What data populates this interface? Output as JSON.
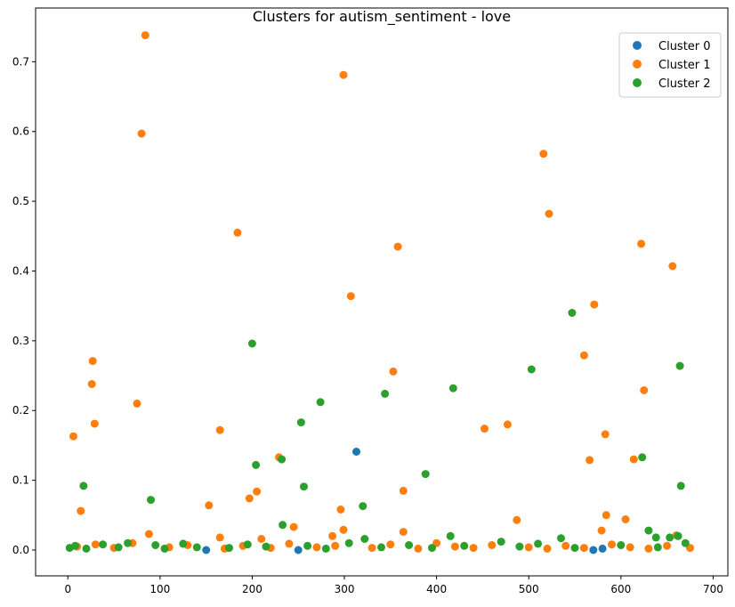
{
  "chart_data": {
    "type": "scatter",
    "title": "Clusters for autism_sentiment - love",
    "xlabel": "",
    "ylabel": "",
    "xlim": [
      -35,
      716
    ],
    "ylim": [
      -0.037,
      0.777
    ],
    "x_ticks": [
      0,
      100,
      200,
      300,
      400,
      500,
      600,
      700
    ],
    "y_ticks": [
      0.0,
      0.1,
      0.2,
      0.3,
      0.4,
      0.5,
      0.6,
      0.7
    ],
    "x_tick_labels": [
      "0",
      "100",
      "200",
      "300",
      "400",
      "500",
      "600",
      "700"
    ],
    "y_tick_labels": [
      "0.0",
      "0.1",
      "0.2",
      "0.3",
      "0.4",
      "0.5",
      "0.6",
      "0.7"
    ],
    "legend_position": "upper-right",
    "grid": false,
    "series": [
      {
        "name": "Cluster 0",
        "color": "#1f77b4",
        "points": [
          [
            313,
            0.141
          ],
          [
            150,
            0.0
          ],
          [
            250,
            0.0
          ],
          [
            570,
            0.0
          ],
          [
            580,
            0.002
          ]
        ]
      },
      {
        "name": "Cluster 1",
        "color": "#ff7f0e",
        "points": [
          [
            84,
            0.738
          ],
          [
            299,
            0.681
          ],
          [
            80,
            0.597
          ],
          [
            516,
            0.568
          ],
          [
            522,
            0.482
          ],
          [
            184,
            0.455
          ],
          [
            358,
            0.435
          ],
          [
            622,
            0.439
          ],
          [
            656,
            0.407
          ],
          [
            307,
            0.364
          ],
          [
            571,
            0.352
          ],
          [
            27,
            0.271
          ],
          [
            560,
            0.279
          ],
          [
            353,
            0.256
          ],
          [
            26,
            0.238
          ],
          [
            625,
            0.229
          ],
          [
            75,
            0.21
          ],
          [
            29,
            0.181
          ],
          [
            477,
            0.18
          ],
          [
            452,
            0.174
          ],
          [
            165,
            0.172
          ],
          [
            6,
            0.163
          ],
          [
            583,
            0.166
          ],
          [
            566,
            0.129
          ],
          [
            614,
            0.13
          ],
          [
            229,
            0.133
          ],
          [
            364,
            0.085
          ],
          [
            205,
            0.084
          ],
          [
            197,
            0.074
          ],
          [
            153,
            0.064
          ],
          [
            14,
            0.056
          ],
          [
            296,
            0.058
          ],
          [
            584,
            0.05
          ],
          [
            605,
            0.044
          ],
          [
            487,
            0.043
          ],
          [
            245,
            0.033
          ],
          [
            299,
            0.029
          ],
          [
            579,
            0.028
          ],
          [
            364,
            0.026
          ],
          [
            88,
            0.023
          ],
          [
            287,
            0.02
          ],
          [
            165,
            0.018
          ],
          [
            210,
            0.016
          ],
          [
            660,
            0.021
          ],
          [
            10,
            0.005
          ],
          [
            30,
            0.008
          ],
          [
            50,
            0.003
          ],
          [
            70,
            0.01
          ],
          [
            110,
            0.004
          ],
          [
            130,
            0.007
          ],
          [
            170,
            0.002
          ],
          [
            190,
            0.006
          ],
          [
            220,
            0.003
          ],
          [
            240,
            0.009
          ],
          [
            270,
            0.004
          ],
          [
            290,
            0.006
          ],
          [
            330,
            0.003
          ],
          [
            350,
            0.008
          ],
          [
            380,
            0.002
          ],
          [
            400,
            0.01
          ],
          [
            420,
            0.005
          ],
          [
            440,
            0.003
          ],
          [
            460,
            0.007
          ],
          [
            500,
            0.004
          ],
          [
            520,
            0.002
          ],
          [
            540,
            0.006
          ],
          [
            560,
            0.003
          ],
          [
            590,
            0.008
          ],
          [
            610,
            0.004
          ],
          [
            630,
            0.002
          ],
          [
            650,
            0.006
          ],
          [
            675,
            0.003
          ]
        ]
      },
      {
        "name": "Cluster 2",
        "color": "#2ca02c",
        "points": [
          [
            547,
            0.34
          ],
          [
            200,
            0.296
          ],
          [
            664,
            0.264
          ],
          [
            503,
            0.259
          ],
          [
            418,
            0.232
          ],
          [
            344,
            0.224
          ],
          [
            274,
            0.212
          ],
          [
            253,
            0.183
          ],
          [
            623,
            0.133
          ],
          [
            232,
            0.13
          ],
          [
            204,
            0.122
          ],
          [
            388,
            0.109
          ],
          [
            17,
            0.092
          ],
          [
            256,
            0.091
          ],
          [
            665,
            0.092
          ],
          [
            90,
            0.072
          ],
          [
            320,
            0.063
          ],
          [
            233,
            0.036
          ],
          [
            630,
            0.028
          ],
          [
            415,
            0.02
          ],
          [
            535,
            0.017
          ],
          [
            638,
            0.018
          ],
          [
            662,
            0.02
          ],
          [
            653,
            0.018
          ],
          [
            322,
            0.016
          ],
          [
            2,
            0.003
          ],
          [
            8,
            0.006
          ],
          [
            20,
            0.002
          ],
          [
            38,
            0.008
          ],
          [
            55,
            0.004
          ],
          [
            65,
            0.01
          ],
          [
            95,
            0.007
          ],
          [
            105,
            0.002
          ],
          [
            125,
            0.009
          ],
          [
            140,
            0.004
          ],
          [
            175,
            0.003
          ],
          [
            195,
            0.008
          ],
          [
            215,
            0.005
          ],
          [
            260,
            0.006
          ],
          [
            280,
            0.002
          ],
          [
            305,
            0.01
          ],
          [
            340,
            0.004
          ],
          [
            370,
            0.007
          ],
          [
            395,
            0.003
          ],
          [
            430,
            0.006
          ],
          [
            470,
            0.012
          ],
          [
            490,
            0.005
          ],
          [
            510,
            0.009
          ],
          [
            550,
            0.003
          ],
          [
            600,
            0.007
          ],
          [
            640,
            0.004
          ],
          [
            670,
            0.01
          ]
        ]
      }
    ]
  }
}
